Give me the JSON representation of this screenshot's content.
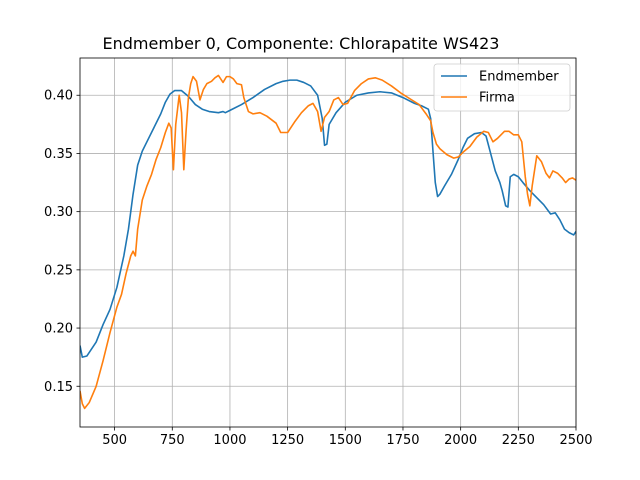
{
  "chart_data": {
    "type": "line",
    "title": "Endmember 0, Componente: Chlorapatite WS423",
    "xlabel": "",
    "ylabel": "",
    "xlim": [
      350,
      2500
    ],
    "ylim": [
      0.115,
      0.432
    ],
    "xticks": [
      500,
      750,
      1000,
      1250,
      1500,
      1750,
      2000,
      2250,
      2500
    ],
    "yticks": [
      0.15,
      0.2,
      0.25,
      0.3,
      0.35,
      0.4
    ],
    "xtick_labels": [
      "500",
      "750",
      "1000",
      "1250",
      "1500",
      "1750",
      "2000",
      "2250",
      "2500"
    ],
    "ytick_labels": [
      "0.15",
      "0.20",
      "0.25",
      "0.30",
      "0.35",
      "0.40"
    ],
    "grid": true,
    "legend_position": "top-right",
    "series": [
      {
        "name": "Endmember",
        "color": "#1f77b4",
        "points": [
          [
            350,
            0.185
          ],
          [
            360,
            0.175
          ],
          [
            380,
            0.176
          ],
          [
            420,
            0.188
          ],
          [
            450,
            0.203
          ],
          [
            480,
            0.216
          ],
          [
            510,
            0.235
          ],
          [
            540,
            0.262
          ],
          [
            560,
            0.285
          ],
          [
            580,
            0.315
          ],
          [
            600,
            0.34
          ],
          [
            620,
            0.352
          ],
          [
            640,
            0.36
          ],
          [
            670,
            0.372
          ],
          [
            700,
            0.384
          ],
          [
            720,
            0.394
          ],
          [
            740,
            0.401
          ],
          [
            760,
            0.404
          ],
          [
            790,
            0.404
          ],
          [
            820,
            0.399
          ],
          [
            850,
            0.392
          ],
          [
            880,
            0.388
          ],
          [
            910,
            0.386
          ],
          [
            950,
            0.385
          ],
          [
            970,
            0.386
          ],
          [
            980,
            0.385
          ],
          [
            1000,
            0.387
          ],
          [
            1050,
            0.392
          ],
          [
            1100,
            0.398
          ],
          [
            1150,
            0.405
          ],
          [
            1200,
            0.41
          ],
          [
            1230,
            0.412
          ],
          [
            1260,
            0.413
          ],
          [
            1290,
            0.413
          ],
          [
            1320,
            0.411
          ],
          [
            1350,
            0.408
          ],
          [
            1380,
            0.4
          ],
          [
            1400,
            0.38
          ],
          [
            1410,
            0.357
          ],
          [
            1420,
            0.358
          ],
          [
            1430,
            0.375
          ],
          [
            1460,
            0.385
          ],
          [
            1500,
            0.394
          ],
          [
            1550,
            0.4
          ],
          [
            1600,
            0.402
          ],
          [
            1650,
            0.403
          ],
          [
            1700,
            0.402
          ],
          [
            1750,
            0.398
          ],
          [
            1800,
            0.393
          ],
          [
            1830,
            0.391
          ],
          [
            1860,
            0.388
          ],
          [
            1870,
            0.38
          ],
          [
            1880,
            0.352
          ],
          [
            1890,
            0.325
          ],
          [
            1900,
            0.313
          ],
          [
            1910,
            0.315
          ],
          [
            1930,
            0.322
          ],
          [
            1960,
            0.332
          ],
          [
            1990,
            0.345
          ],
          [
            2010,
            0.355
          ],
          [
            2030,
            0.363
          ],
          [
            2060,
            0.367
          ],
          [
            2090,
            0.368
          ],
          [
            2110,
            0.365
          ],
          [
            2130,
            0.35
          ],
          [
            2150,
            0.335
          ],
          [
            2170,
            0.325
          ],
          [
            2180,
            0.318
          ],
          [
            2195,
            0.305
          ],
          [
            2205,
            0.304
          ],
          [
            2215,
            0.33
          ],
          [
            2230,
            0.332
          ],
          [
            2250,
            0.33
          ],
          [
            2270,
            0.325
          ],
          [
            2300,
            0.318
          ],
          [
            2330,
            0.312
          ],
          [
            2360,
            0.306
          ],
          [
            2390,
            0.298
          ],
          [
            2410,
            0.299
          ],
          [
            2430,
            0.293
          ],
          [
            2450,
            0.285
          ],
          [
            2470,
            0.282
          ],
          [
            2490,
            0.28
          ],
          [
            2500,
            0.283
          ]
        ]
      },
      {
        "name": "Firma",
        "color": "#ff7f0e",
        "points": [
          [
            350,
            0.146
          ],
          [
            360,
            0.135
          ],
          [
            370,
            0.131
          ],
          [
            390,
            0.136
          ],
          [
            420,
            0.15
          ],
          [
            450,
            0.172
          ],
          [
            480,
            0.196
          ],
          [
            510,
            0.218
          ],
          [
            530,
            0.229
          ],
          [
            550,
            0.247
          ],
          [
            570,
            0.262
          ],
          [
            580,
            0.266
          ],
          [
            590,
            0.262
          ],
          [
            600,
            0.285
          ],
          [
            620,
            0.31
          ],
          [
            640,
            0.322
          ],
          [
            660,
            0.332
          ],
          [
            680,
            0.345
          ],
          [
            700,
            0.355
          ],
          [
            720,
            0.368
          ],
          [
            735,
            0.376
          ],
          [
            745,
            0.372
          ],
          [
            755,
            0.336
          ],
          [
            765,
            0.375
          ],
          [
            780,
            0.4
          ],
          [
            790,
            0.385
          ],
          [
            800,
            0.336
          ],
          [
            810,
            0.37
          ],
          [
            820,
            0.398
          ],
          [
            830,
            0.41
          ],
          [
            840,
            0.416
          ],
          [
            855,
            0.412
          ],
          [
            870,
            0.396
          ],
          [
            885,
            0.405
          ],
          [
            900,
            0.41
          ],
          [
            920,
            0.412
          ],
          [
            935,
            0.415
          ],
          [
            950,
            0.417
          ],
          [
            960,
            0.414
          ],
          [
            970,
            0.411
          ],
          [
            985,
            0.416
          ],
          [
            1000,
            0.416
          ],
          [
            1015,
            0.414
          ],
          [
            1030,
            0.41
          ],
          [
            1050,
            0.409
          ],
          [
            1060,
            0.398
          ],
          [
            1080,
            0.386
          ],
          [
            1100,
            0.384
          ],
          [
            1130,
            0.385
          ],
          [
            1160,
            0.382
          ],
          [
            1200,
            0.376
          ],
          [
            1220,
            0.368
          ],
          [
            1250,
            0.368
          ],
          [
            1280,
            0.377
          ],
          [
            1310,
            0.385
          ],
          [
            1340,
            0.391
          ],
          [
            1360,
            0.393
          ],
          [
            1380,
            0.386
          ],
          [
            1395,
            0.369
          ],
          [
            1410,
            0.381
          ],
          [
            1430,
            0.386
          ],
          [
            1450,
            0.396
          ],
          [
            1470,
            0.398
          ],
          [
            1490,
            0.392
          ],
          [
            1510,
            0.393
          ],
          [
            1540,
            0.404
          ],
          [
            1570,
            0.41
          ],
          [
            1600,
            0.414
          ],
          [
            1630,
            0.415
          ],
          [
            1660,
            0.413
          ],
          [
            1700,
            0.408
          ],
          [
            1740,
            0.402
          ],
          [
            1780,
            0.397
          ],
          [
            1820,
            0.392
          ],
          [
            1850,
            0.384
          ],
          [
            1870,
            0.378
          ],
          [
            1880,
            0.368
          ],
          [
            1895,
            0.358
          ],
          [
            1910,
            0.354
          ],
          [
            1940,
            0.349
          ],
          [
            1970,
            0.346
          ],
          [
            1990,
            0.347
          ],
          [
            2010,
            0.351
          ],
          [
            2040,
            0.356
          ],
          [
            2070,
            0.364
          ],
          [
            2100,
            0.369
          ],
          [
            2120,
            0.368
          ],
          [
            2140,
            0.36
          ],
          [
            2160,
            0.363
          ],
          [
            2190,
            0.369
          ],
          [
            2210,
            0.369
          ],
          [
            2230,
            0.366
          ],
          [
            2250,
            0.366
          ],
          [
            2265,
            0.36
          ],
          [
            2280,
            0.33
          ],
          [
            2290,
            0.315
          ],
          [
            2300,
            0.305
          ],
          [
            2310,
            0.322
          ],
          [
            2330,
            0.348
          ],
          [
            2350,
            0.343
          ],
          [
            2370,
            0.333
          ],
          [
            2385,
            0.329
          ],
          [
            2400,
            0.335
          ],
          [
            2420,
            0.333
          ],
          [
            2440,
            0.329
          ],
          [
            2455,
            0.325
          ],
          [
            2470,
            0.328
          ],
          [
            2485,
            0.329
          ],
          [
            2500,
            0.327
          ]
        ]
      }
    ]
  }
}
